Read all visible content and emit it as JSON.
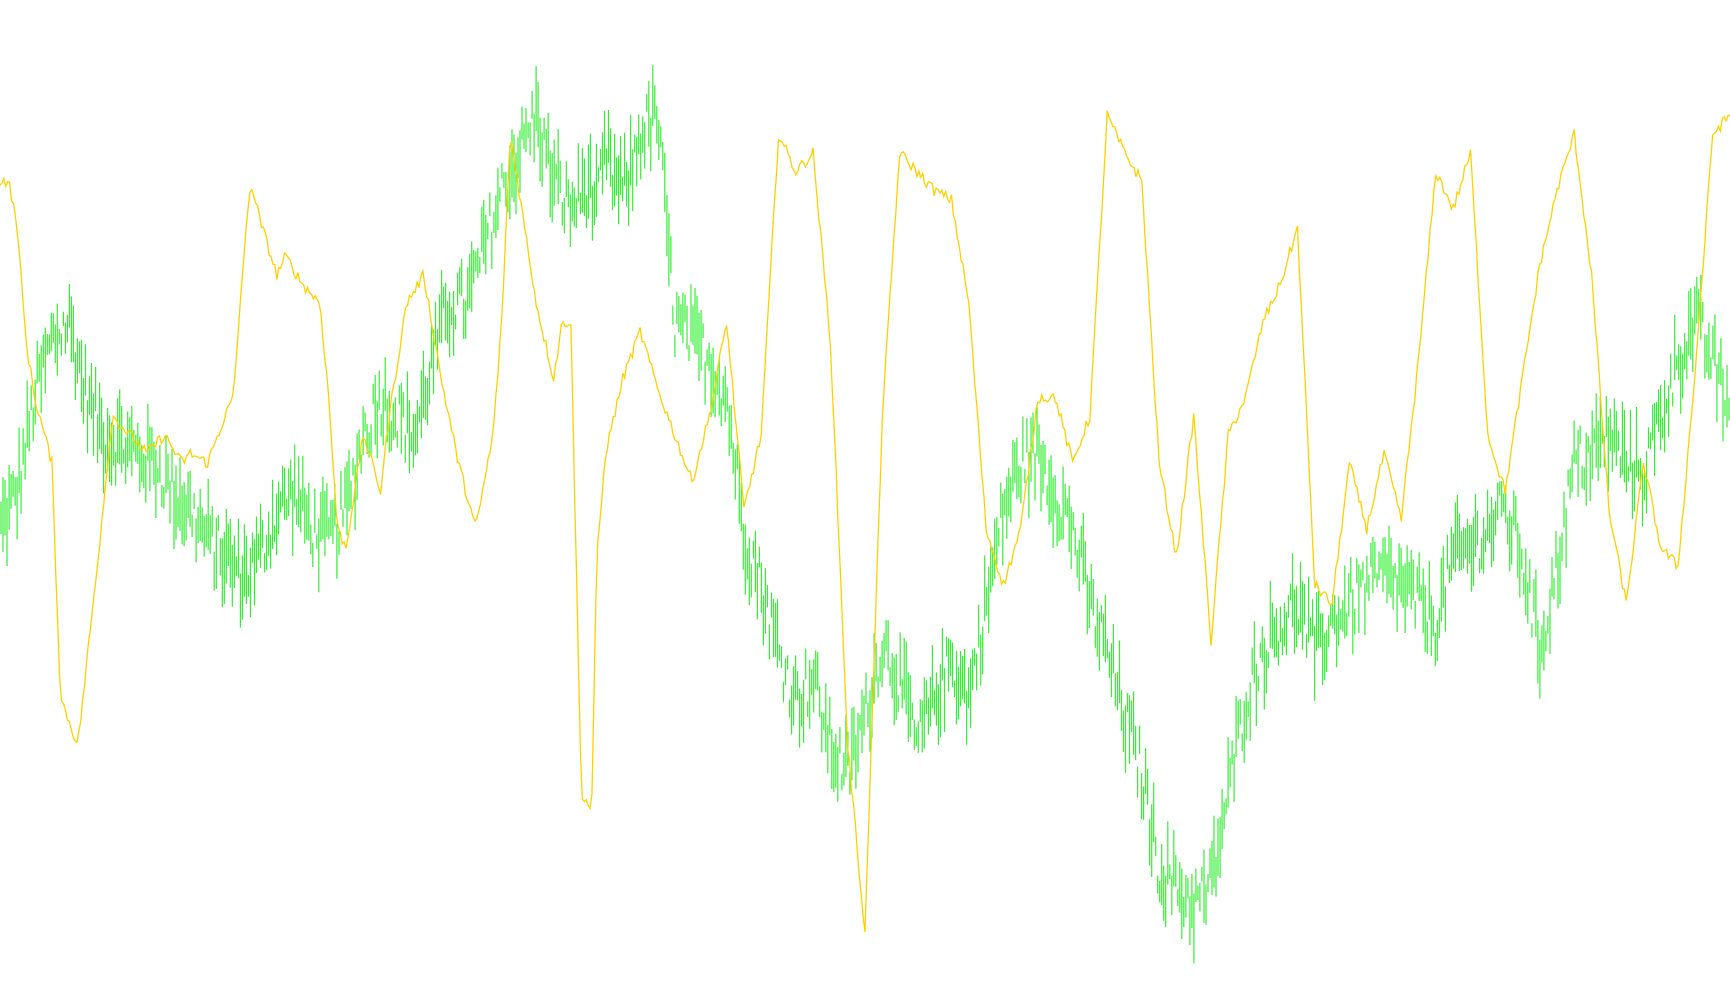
{
  "chart_data": {
    "type": "line",
    "title": "",
    "xlabel": "",
    "ylabel": "",
    "grid": false,
    "legend": "none",
    "xlim": [
      0,
      1000
    ],
    "ylim": [
      0,
      100
    ],
    "series": [
      {
        "color": "#FFD000",
        "style": "thin line",
        "x": [
          0,
          5,
          10,
          15,
          20,
          30,
          35,
          45,
          55,
          65,
          75,
          85,
          95,
          105,
          110,
          120,
          130,
          135,
          140,
          145,
          150,
          155,
          160,
          165,
          175,
          180,
          185,
          190,
          195,
          200,
          210,
          215,
          220,
          225,
          235,
          245,
          255,
          265,
          275,
          285,
          290,
          295,
          300,
          310,
          320,
          325,
          330,
          336,
          342,
          345,
          350,
          360,
          370,
          380,
          390,
          400,
          410,
          420,
          430,
          440,
          450,
          460,
          470,
          480,
          490,
          500,
          510,
          520,
          530,
          540,
          550,
          560,
          570,
          580,
          590,
          600,
          610,
          620,
          630,
          640,
          650,
          660,
          670,
          680,
          690,
          700,
          710,
          720,
          730,
          740,
          750,
          760,
          770,
          780,
          790,
          800,
          810,
          820,
          830,
          840,
          850,
          860,
          870,
          880,
          890,
          900,
          910,
          920,
          930,
          940,
          950,
          960,
          970,
          980,
          990,
          1000
        ],
        "y": [
          85,
          85,
          80,
          68,
          62,
          55,
          30,
          25,
          42,
          60,
          58,
          56,
          58,
          55,
          56,
          55,
          60,
          62,
          75,
          85,
          81,
          78,
          75,
          77,
          74,
          73,
          72,
          62,
          48,
          46,
          58,
          55,
          52,
          60,
          72,
          75,
          64,
          55,
          48,
          58,
          70,
          90,
          84,
          72,
          64,
          70,
          70,
          20,
          18,
          45,
          56,
          64,
          69,
          63,
          58,
          53,
          60,
          70,
          50,
          58,
          90,
          86,
          88,
          68,
          25,
          5,
          60,
          88,
          86,
          84,
          83,
          72,
          48,
          42,
          48,
          62,
          62,
          55,
          60,
          92,
          88,
          85,
          55,
          45,
          60,
          36,
          58,
          62,
          70,
          74,
          80,
          42,
          40,
          55,
          48,
          56,
          49,
          66,
          86,
          82,
          88,
          58,
          52,
          64,
          76,
          84,
          90,
          75,
          50,
          40,
          55,
          46,
          44,
          65,
          90,
          92
        ],
        "y_top_is": "high"
      },
      {
        "color": "#33EE33",
        "style": "dense vertical OHLC bars",
        "x": [
          0,
          10,
          20,
          30,
          40,
          50,
          60,
          70,
          80,
          90,
          100,
          110,
          120,
          130,
          140,
          150,
          160,
          170,
          180,
          190,
          200,
          210,
          220,
          230,
          240,
          250,
          260,
          270,
          280,
          290,
          300,
          310,
          320,
          330,
          340,
          345,
          350,
          355,
          360,
          365,
          370,
          380,
          390,
          400,
          410,
          420,
          430,
          440,
          450,
          460,
          470,
          480,
          490,
          500,
          510,
          520,
          530,
          540,
          550,
          560,
          570,
          580,
          590,
          600,
          610,
          620,
          630,
          640,
          650,
          660,
          670,
          680,
          690,
          700,
          710,
          720,
          730,
          740,
          750,
          760,
          770,
          780,
          790,
          800,
          810,
          820,
          830,
          840,
          850,
          860,
          870,
          880,
          890,
          900,
          910,
          920,
          930,
          940,
          950,
          960,
          970,
          980,
          990,
          1000
        ],
        "y": [
          48,
          52,
          62,
          68,
          70,
          62,
          58,
          57,
          56,
          55,
          52,
          50,
          47,
          45,
          43,
          45,
          50,
          52,
          48,
          47,
          50,
          58,
          62,
          60,
          58,
          66,
          72,
          72,
          78,
          84,
          88,
          92,
          85,
          82,
          85,
          82,
          88,
          85,
          84,
          86,
          90,
          92,
          70,
          68,
          66,
          62,
          48,
          42,
          35,
          30,
          32,
          25,
          22,
          28,
          36,
          32,
          25,
          30,
          34,
          30,
          40,
          50,
          55,
          56,
          52,
          48,
          40,
          35,
          28,
          22,
          12,
          10,
          8,
          10,
          20,
          30,
          35,
          38,
          40,
          35,
          38,
          40,
          42,
          43,
          42,
          40,
          38,
          45,
          46,
          48,
          50,
          45,
          35,
          44,
          55,
          56,
          58,
          55,
          54,
          60,
          66,
          70,
          66,
          60
        ],
        "y_top_is": "high"
      }
    ]
  }
}
